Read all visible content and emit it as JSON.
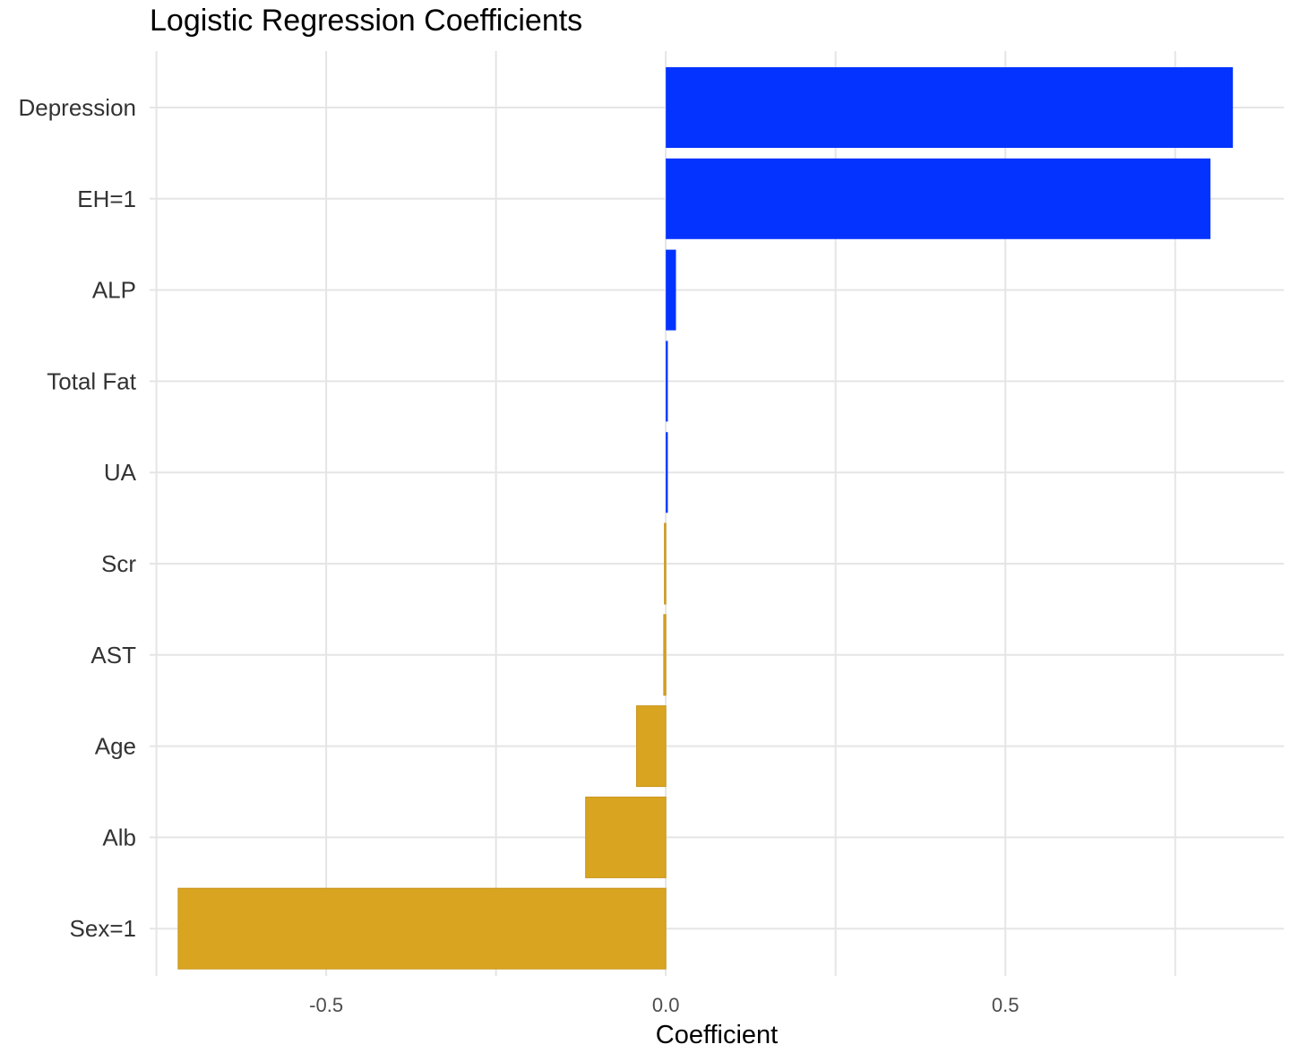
{
  "chart_data": {
    "type": "bar",
    "orientation": "horizontal",
    "title": "Logistic Regression Coefficients",
    "xlabel": "Coefficient",
    "ylabel": "",
    "categories": [
      "Depression",
      "EH=1",
      "ALP",
      "Total Fat",
      "UA",
      "Scr",
      "AST",
      "Age",
      "Alb",
      "Sex=1"
    ],
    "values": [
      0.835,
      0.802,
      0.015,
      0.003,
      0.003,
      -0.002,
      -0.003,
      -0.043,
      -0.118,
      -0.718
    ],
    "xlim": [
      -0.76,
      0.91
    ],
    "xticks": [
      -0.5,
      0.0,
      0.5
    ],
    "xtick_labels": [
      "-0.5",
      "0.0",
      "0.5"
    ],
    "x_minor_gridlines": [
      -0.75,
      -0.25,
      0.25,
      0.75
    ],
    "grid": true,
    "legend": "none",
    "colors": {
      "positive": "#0433ff",
      "negative": "#d9a521",
      "negative_border": "#c8941a",
      "grid": "#e5e5e5"
    }
  }
}
